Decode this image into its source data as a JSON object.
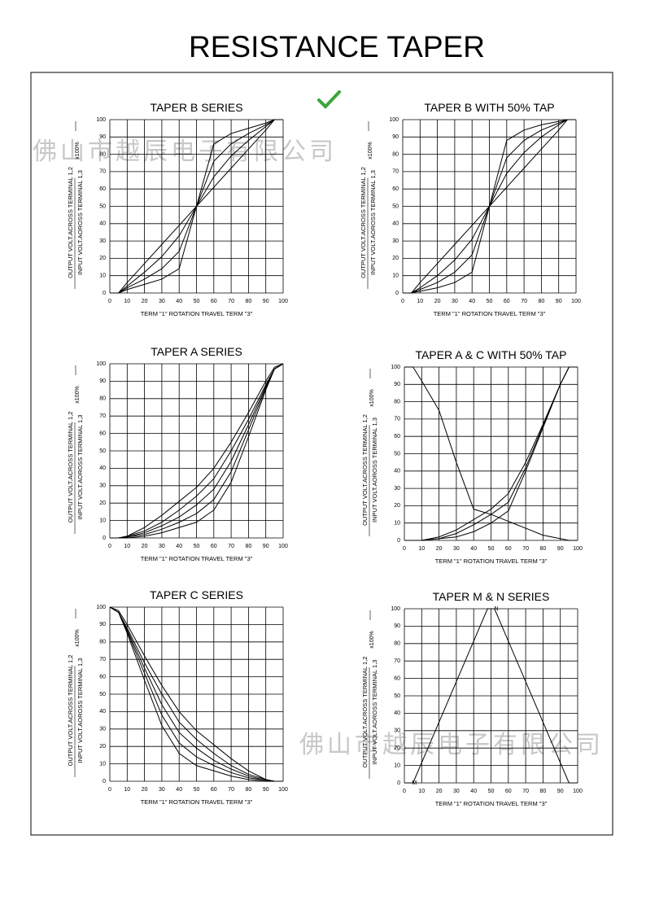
{
  "title": "RESISTANCE TAPER",
  "watermark": "佛山市越辰电子有限公司",
  "chart_data": [
    {
      "type": "line",
      "title": "TAPER B SERIES",
      "ylabel": "OUTPUT VOLT.ACROSS TERMINAL 1,2",
      "ylabel2": "INPUT VOLT.AOROSS TERMINAL 1,3",
      "yunit": "x100%",
      "xlabel": "TERM \"1\" ROTATION TRAVEL TERM \"3\"",
      "x": [
        0,
        5,
        10,
        20,
        30,
        40,
        50,
        60,
        70,
        80,
        90,
        95,
        100
      ],
      "xlim": [
        0,
        100
      ],
      "ylim": [
        0,
        100
      ],
      "xticks": [
        0,
        10,
        20,
        30,
        40,
        50,
        60,
        70,
        80,
        90,
        100
      ],
      "yticks": [
        0,
        10,
        20,
        30,
        40,
        50,
        60,
        70,
        80,
        90,
        100
      ],
      "grid": true,
      "series": [
        {
          "color": "#000000",
          "values": [
            0,
            0,
            6,
            17,
            28,
            39,
            50,
            61,
            72,
            83,
            94,
            100,
            100
          ]
        },
        {
          "color": "#000000",
          "values": [
            0,
            0,
            4,
            12,
            21,
            33,
            50,
            67,
            79,
            88,
            96,
            100,
            100
          ]
        },
        {
          "color": "#000000",
          "values": [
            0,
            0,
            3,
            8,
            14,
            24,
            50,
            76,
            86,
            92,
            97,
            100,
            100
          ]
        },
        {
          "color": "#000000",
          "values": [
            0,
            0,
            2,
            5,
            8,
            14,
            50,
            86,
            92,
            95,
            98,
            100,
            100
          ]
        }
      ]
    },
    {
      "type": "line",
      "title": "TAPER B WITH 50% TAP",
      "ylabel": "OUTPUT VOLT.ACROSS TERMINAL 1,2",
      "ylabel2": "INPUT VOLT.AOROSS TERMINAL 1,3",
      "yunit": "x100%",
      "xlabel": "TERM \"1\" ROTATION TRAVEL TERM \"3\"",
      "x": [
        0,
        5,
        10,
        20,
        30,
        40,
        50,
        60,
        70,
        80,
        90,
        95,
        100
      ],
      "xlim": [
        0,
        100
      ],
      "ylim": [
        0,
        100
      ],
      "xticks": [
        0,
        10,
        20,
        30,
        40,
        50,
        60,
        70,
        80,
        90,
        100
      ],
      "yticks": [
        0,
        10,
        20,
        30,
        40,
        50,
        60,
        70,
        80,
        90,
        100
      ],
      "grid": true,
      "series": [
        {
          "color": "#000000",
          "values": [
            0,
            0,
            6,
            17,
            28,
            39,
            50,
            61,
            72,
            83,
            94,
            100,
            100
          ]
        },
        {
          "color": "#000000",
          "values": [
            0,
            0,
            3,
            10,
            19,
            31,
            50,
            69,
            81,
            90,
            97,
            100,
            100
          ]
        },
        {
          "color": "#000000",
          "values": [
            0,
            0,
            2,
            6,
            12,
            22,
            50,
            78,
            88,
            94,
            98,
            100,
            100
          ]
        },
        {
          "color": "#000000",
          "values": [
            0,
            0,
            1,
            3,
            6,
            12,
            50,
            88,
            94,
            97,
            99,
            100,
            100
          ]
        }
      ]
    },
    {
      "type": "line",
      "title": "TAPER A SERIES",
      "ylabel": "OUTPUT VOLT.ACROSS TERMINAL 1,2",
      "ylabel2": "INPUT VOLT.AOROSS TERMINAL 1,3",
      "yunit": "x100%",
      "xlabel": "TERM \"1\" ROTATION TRAVEL TERM \"3\"",
      "x": [
        0,
        5,
        10,
        20,
        30,
        40,
        50,
        60,
        70,
        80,
        90,
        95,
        100
      ],
      "xlim": [
        0,
        100
      ],
      "ylim": [
        0,
        100
      ],
      "xticks": [
        0,
        10,
        20,
        30,
        40,
        50,
        60,
        70,
        80,
        90,
        100
      ],
      "yticks": [
        0,
        10,
        20,
        30,
        40,
        50,
        60,
        70,
        80,
        90,
        100
      ],
      "grid": true,
      "series": [
        {
          "color": "#000000",
          "values": [
            0,
            0,
            1,
            6,
            13,
            21,
            29,
            40,
            55,
            72,
            90,
            98,
            100
          ]
        },
        {
          "color": "#000000",
          "values": [
            0,
            0,
            1,
            4,
            9,
            16,
            24,
            34,
            50,
            68,
            88,
            97,
            100
          ]
        },
        {
          "color": "#000000",
          "values": [
            0,
            0,
            0.5,
            3,
            7,
            12,
            19,
            28,
            44,
            65,
            87,
            97,
            100
          ]
        },
        {
          "color": "#000000",
          "values": [
            0,
            0,
            0.5,
            2,
            5,
            9,
            14,
            22,
            38,
            62,
            86,
            97,
            100
          ]
        },
        {
          "color": "#000000",
          "values": [
            0,
            0,
            0,
            1,
            3,
            6,
            9,
            16,
            32,
            58,
            85,
            97,
            100
          ]
        }
      ]
    },
    {
      "type": "line",
      "title": "TAPER A & C WITH 50% TAP",
      "ylabel": "OUTPUT VOLT.ACROSS TERMINAL 1,2",
      "ylabel2": "INPUT VOLT.AOROSS TERMINAL 1,3",
      "yunit": "x100%",
      "xlabel": "TERM \"1\" ROTATION TRAVEL TERM \"3\"",
      "x": [
        0,
        5,
        10,
        20,
        30,
        40,
        50,
        60,
        70,
        80,
        90,
        95,
        100
      ],
      "xlim": [
        0,
        100
      ],
      "ylim": [
        0,
        100
      ],
      "xticks": [
        0,
        10,
        20,
        30,
        40,
        50,
        60,
        70,
        80,
        90,
        100
      ],
      "yticks": [
        0,
        10,
        20,
        30,
        40,
        50,
        60,
        70,
        80,
        90,
        100
      ],
      "grid": true,
      "series": [
        {
          "color": "#000000",
          "values": [
            100,
            100,
            92,
            75,
            45,
            18,
            15,
            11,
            7,
            3,
            1,
            0,
            0
          ]
        },
        {
          "color": "#000000",
          "values": [
            0,
            0,
            0,
            2,
            6,
            12,
            18,
            27,
            45,
            67,
            90,
            100,
            100
          ]
        },
        {
          "color": "#000000",
          "values": [
            0,
            0,
            0,
            1,
            4,
            9,
            15,
            22,
            42,
            66,
            90,
            100,
            100
          ]
        },
        {
          "color": "#000000",
          "values": [
            0,
            0,
            0,
            1,
            2,
            5,
            10,
            17,
            40,
            65,
            90,
            100,
            100
          ]
        }
      ]
    },
    {
      "type": "line",
      "title": "TAPER C SERIES",
      "ylabel": "OUTPUT VOLT.ACROSS TERMINAL 1,2",
      "ylabel2": "INPUT VOLT.AOROSS TERMINAL 1,3",
      "yunit": "x100%",
      "xlabel": "TERM \"1\" ROTATION TRAVEL TERM \"3\"",
      "x": [
        0,
        5,
        10,
        20,
        30,
        40,
        50,
        60,
        70,
        80,
        90,
        95,
        100
      ],
      "xlim": [
        0,
        100
      ],
      "ylim": [
        0,
        100
      ],
      "xticks": [
        0,
        10,
        20,
        30,
        40,
        50,
        60,
        70,
        80,
        90,
        100
      ],
      "yticks": [
        0,
        10,
        20,
        30,
        40,
        50,
        60,
        70,
        80,
        90,
        100
      ],
      "grid": true,
      "series": [
        {
          "color": "#000000",
          "values": [
            100,
            98,
            90,
            72,
            55,
            40,
            29,
            21,
            13,
            6,
            1,
            0,
            0
          ]
        },
        {
          "color": "#000000",
          "values": [
            100,
            97,
            88,
            68,
            50,
            34,
            24,
            16,
            9,
            4,
            1,
            0,
            0
          ]
        },
        {
          "color": "#000000",
          "values": [
            100,
            97,
            87,
            65,
            44,
            28,
            19,
            12,
            7,
            3,
            0.5,
            0,
            0
          ]
        },
        {
          "color": "#000000",
          "values": [
            100,
            97,
            86,
            62,
            38,
            22,
            14,
            9,
            5,
            2,
            0.5,
            0,
            0
          ]
        },
        {
          "color": "#000000",
          "values": [
            100,
            97,
            85,
            58,
            32,
            16,
            9,
            6,
            3,
            1,
            0,
            0,
            0
          ]
        }
      ]
    },
    {
      "type": "line",
      "title": "TAPER M & N SERIES",
      "ylabel": "OUTPUT VOLT.ACROSS TERMINAL 1,2",
      "ylabel2": "INPUT VOLT.AOROSS TERMINAL 1,3",
      "yunit": "x100%",
      "xlabel": "TERM \"1\" ROTATION TRAVEL TERM \"3\"",
      "x": [
        0,
        5,
        48,
        52,
        95,
        100
      ],
      "xlim": [
        0,
        100
      ],
      "ylim": [
        0,
        100
      ],
      "xticks": [
        0,
        10,
        20,
        30,
        40,
        50,
        60,
        70,
        80,
        90,
        100
      ],
      "yticks": [
        0,
        10,
        20,
        30,
        40,
        50,
        60,
        70,
        80,
        90,
        100
      ],
      "grid": true,
      "series": [
        {
          "name": "M",
          "color": "#000000",
          "values": [
            0,
            0,
            100,
            100,
            null,
            null
          ]
        },
        {
          "name": "N",
          "color": "#000000",
          "values": [
            null,
            null,
            100,
            100,
            0,
            0
          ]
        }
      ]
    }
  ]
}
